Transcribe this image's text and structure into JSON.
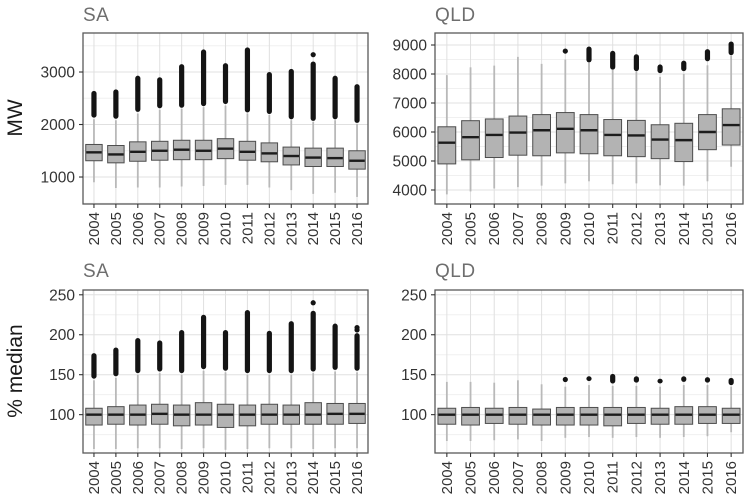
{
  "figure": {
    "description": "Grid of four box-and-whisker plots comparing SA and QLD electricity demand by year",
    "row_units": [
      "MW",
      "% median"
    ],
    "regions": [
      "SA",
      "QLD"
    ]
  },
  "style": {
    "background": "#ffffff",
    "panel_border": "#595959",
    "grid_major": "#e0e0e0",
    "grid_minor": "#f0f0f0",
    "box_fill": "#b3b3b3",
    "box_stroke": "#4d4d4d",
    "median_color": "#1c1c1c",
    "whisker_color": "#b9b9b9",
    "outlier_color": "#141414",
    "tick_color": "#333333",
    "tick_label_color": "#333333",
    "title_color": "#6e6e6e"
  },
  "chart_data": [
    {
      "type": "boxplot",
      "panel": "top-left",
      "title": "SA",
      "ylabel": "MW",
      "x_categories": [
        "2004",
        "2005",
        "2006",
        "2007",
        "2008",
        "2009",
        "2010",
        "2011",
        "2012",
        "2013",
        "2014",
        "2015",
        "2016"
      ],
      "yticks": [
        1000,
        2000,
        3000
      ],
      "minor_step": 500,
      "ylim": [
        486,
        3743
      ],
      "grid": true,
      "boxes": [
        {
          "year": "2004",
          "low": 900,
          "q1": 1310,
          "median": 1470,
          "q3": 1620,
          "high": 2100,
          "outlier_band": [
            2130,
            2640
          ],
          "outlier_dots": []
        },
        {
          "year": "2005",
          "low": 790,
          "q1": 1270,
          "median": 1430,
          "q3": 1600,
          "high": 2080,
          "outlier_band": [
            2110,
            2670
          ],
          "outlier_dots": []
        },
        {
          "year": "2006",
          "low": 800,
          "q1": 1300,
          "median": 1480,
          "q3": 1670,
          "high": 2210,
          "outlier_band": [
            2240,
            2930
          ],
          "outlier_dots": []
        },
        {
          "year": "2007",
          "low": 800,
          "q1": 1320,
          "median": 1500,
          "q3": 1680,
          "high": 2280,
          "outlier_band": [
            2310,
            2900
          ],
          "outlier_dots": []
        },
        {
          "year": "2008",
          "low": 820,
          "q1": 1330,
          "median": 1520,
          "q3": 1700,
          "high": 2300,
          "outlier_band": [
            2320,
            3150
          ],
          "outlier_dots": []
        },
        {
          "year": "2009",
          "low": 830,
          "q1": 1330,
          "median": 1500,
          "q3": 1700,
          "high": 2330,
          "outlier_band": [
            2350,
            3430
          ],
          "outlier_dots": []
        },
        {
          "year": "2010",
          "low": 850,
          "q1": 1350,
          "median": 1540,
          "q3": 1730,
          "high": 2360,
          "outlier_band": [
            2390,
            3170
          ],
          "outlier_dots": []
        },
        {
          "year": "2011",
          "low": 850,
          "q1": 1320,
          "median": 1480,
          "q3": 1680,
          "high": 2210,
          "outlier_band": [
            2230,
            3470
          ],
          "outlier_dots": []
        },
        {
          "year": "2012",
          "low": 800,
          "q1": 1290,
          "median": 1450,
          "q3": 1650,
          "high": 2180,
          "outlier_band": [
            2200,
            3000
          ],
          "outlier_dots": []
        },
        {
          "year": "2013",
          "low": 750,
          "q1": 1230,
          "median": 1400,
          "q3": 1570,
          "high": 2080,
          "outlier_band": [
            2100,
            3060
          ],
          "outlier_dots": []
        },
        {
          "year": "2014",
          "low": 680,
          "q1": 1200,
          "median": 1370,
          "q3": 1550,
          "high": 2050,
          "outlier_band": [
            2070,
            3200
          ],
          "outlier_dots": [
            3330
          ]
        },
        {
          "year": "2015",
          "low": 700,
          "q1": 1200,
          "median": 1360,
          "q3": 1550,
          "high": 2080,
          "outlier_band": [
            2100,
            2930
          ],
          "outlier_dots": []
        },
        {
          "year": "2016",
          "low": 620,
          "q1": 1150,
          "median": 1310,
          "q3": 1500,
          "high": 2010,
          "outlier_band": [
            2030,
            2770
          ],
          "outlier_dots": []
        }
      ]
    },
    {
      "type": "boxplot",
      "panel": "top-right",
      "title": "QLD",
      "ylabel": "MW",
      "x_categories": [
        "2004",
        "2005",
        "2006",
        "2007",
        "2008",
        "2009",
        "2010",
        "2011",
        "2012",
        "2013",
        "2014",
        "2015",
        "2016"
      ],
      "yticks": [
        4000,
        5000,
        6000,
        7000,
        8000,
        9000
      ],
      "minor_step": 500,
      "ylim": [
        3517,
        9414
      ],
      "grid": true,
      "boxes": [
        {
          "year": "2004",
          "low": 3850,
          "q1": 4900,
          "median": 5630,
          "q3": 6180,
          "high": 7960,
          "outlier_band": null,
          "outlier_dots": []
        },
        {
          "year": "2005",
          "low": 3950,
          "q1": 5040,
          "median": 5820,
          "q3": 6390,
          "high": 8230,
          "outlier_band": null,
          "outlier_dots": []
        },
        {
          "year": "2006",
          "low": 4050,
          "q1": 5120,
          "median": 5900,
          "q3": 6450,
          "high": 8290,
          "outlier_band": null,
          "outlier_dots": []
        },
        {
          "year": "2007",
          "low": 4100,
          "q1": 5200,
          "median": 5980,
          "q3": 6550,
          "high": 8590,
          "outlier_band": null,
          "outlier_dots": []
        },
        {
          "year": "2008",
          "low": 4150,
          "q1": 5180,
          "median": 6060,
          "q3": 6600,
          "high": 8350,
          "outlier_band": null,
          "outlier_dots": []
        },
        {
          "year": "2009",
          "low": 4230,
          "q1": 5280,
          "median": 6110,
          "q3": 6670,
          "high": 8500,
          "outlier_band": null,
          "outlier_dots": [
            8790
          ]
        },
        {
          "year": "2010",
          "low": 4300,
          "q1": 5250,
          "median": 6060,
          "q3": 6600,
          "high": 8390,
          "outlier_band": [
            8400,
            8950
          ],
          "outlier_dots": []
        },
        {
          "year": "2011",
          "low": 4200,
          "q1": 5180,
          "median": 5900,
          "q3": 6430,
          "high": 8140,
          "outlier_band": [
            8150,
            8800
          ],
          "outlier_dots": []
        },
        {
          "year": "2012",
          "low": 4230,
          "q1": 5150,
          "median": 5880,
          "q3": 6400,
          "high": 8090,
          "outlier_band": [
            8100,
            8680
          ],
          "outlier_dots": []
        },
        {
          "year": "2013",
          "low": 4160,
          "q1": 5080,
          "median": 5740,
          "q3": 6250,
          "high": 7900,
          "outlier_band": [
            8030,
            8330
          ],
          "outlier_dots": []
        },
        {
          "year": "2014",
          "low": 4150,
          "q1": 4980,
          "median": 5720,
          "q3": 6300,
          "high": 8000,
          "outlier_band": [
            8100,
            8460
          ],
          "outlier_dots": []
        },
        {
          "year": "2015",
          "low": 4300,
          "q1": 5390,
          "median": 6000,
          "q3": 6600,
          "high": 8300,
          "outlier_band": [
            8440,
            8860
          ],
          "outlier_dots": []
        },
        {
          "year": "2016",
          "low": 4800,
          "q1": 5550,
          "median": 6240,
          "q3": 6800,
          "high": 8640,
          "outlier_band": [
            8650,
            9120
          ],
          "outlier_dots": []
        }
      ]
    },
    {
      "type": "boxplot",
      "panel": "bottom-left",
      "title": "SA",
      "ylabel": "% median",
      "x_categories": [
        "2004",
        "2005",
        "2006",
        "2007",
        "2008",
        "2009",
        "2010",
        "2011",
        "2012",
        "2013",
        "2014",
        "2015",
        "2016"
      ],
      "yticks": [
        100,
        150,
        200,
        250
      ],
      "minor_step": 25,
      "ylim": [
        52,
        256
      ],
      "grid": true,
      "boxes": [
        {
          "year": "2004",
          "low": 57,
          "q1": 87,
          "median": 100,
          "q3": 108,
          "high": 143,
          "outlier_band": [
            145,
            177
          ],
          "outlier_dots": []
        },
        {
          "year": "2005",
          "low": 57,
          "q1": 88,
          "median": 100,
          "q3": 110,
          "high": 146,
          "outlier_band": [
            148,
            184
          ],
          "outlier_dots": []
        },
        {
          "year": "2006",
          "low": 58,
          "q1": 87,
          "median": 100,
          "q3": 112,
          "high": 150,
          "outlier_band": [
            152,
            196
          ],
          "outlier_dots": []
        },
        {
          "year": "2007",
          "low": 58,
          "q1": 88,
          "median": 101,
          "q3": 113,
          "high": 152,
          "outlier_band": [
            154,
            193
          ],
          "outlier_dots": []
        },
        {
          "year": "2008",
          "low": 57,
          "q1": 86,
          "median": 100,
          "q3": 112,
          "high": 150,
          "outlier_band": [
            152,
            206
          ],
          "outlier_dots": []
        },
        {
          "year": "2009",
          "low": 58,
          "q1": 87,
          "median": 100,
          "q3": 115,
          "high": 155,
          "outlier_band": [
            157,
            225
          ],
          "outlier_dots": []
        },
        {
          "year": "2010",
          "low": 56,
          "q1": 84,
          "median": 100,
          "q3": 113,
          "high": 153,
          "outlier_band": [
            155,
            206
          ],
          "outlier_dots": []
        },
        {
          "year": "2011",
          "low": 57,
          "q1": 86,
          "median": 100,
          "q3": 112,
          "high": 150,
          "outlier_band": [
            152,
            231
          ],
          "outlier_dots": []
        },
        {
          "year": "2012",
          "low": 58,
          "q1": 88,
          "median": 100,
          "q3": 113,
          "high": 150,
          "outlier_band": [
            152,
            205
          ],
          "outlier_dots": []
        },
        {
          "year": "2013",
          "low": 58,
          "q1": 88,
          "median": 100,
          "q3": 112,
          "high": 150,
          "outlier_band": [
            152,
            217
          ],
          "outlier_dots": []
        },
        {
          "year": "2014",
          "low": 57,
          "q1": 88,
          "median": 100,
          "q3": 115,
          "high": 152,
          "outlier_band": [
            154,
            230
          ],
          "outlier_dots": [
            240
          ]
        },
        {
          "year": "2015",
          "low": 58,
          "q1": 88,
          "median": 101,
          "q3": 114,
          "high": 154,
          "outlier_band": [
            156,
            214
          ],
          "outlier_dots": []
        },
        {
          "year": "2016",
          "low": 58,
          "q1": 89,
          "median": 101,
          "q3": 114,
          "high": 153,
          "outlier_band": [
            155,
            202
          ],
          "outlier_dots": [
            206,
            209
          ]
        }
      ]
    },
    {
      "type": "boxplot",
      "panel": "bottom-right",
      "title": "QLD",
      "ylabel": "% median",
      "x_categories": [
        "2004",
        "2005",
        "2006",
        "2007",
        "2008",
        "2009",
        "2010",
        "2011",
        "2012",
        "2013",
        "2014",
        "2015",
        "2016"
      ],
      "yticks": [
        100,
        150,
        200,
        250
      ],
      "minor_step": 25,
      "ylim": [
        52,
        256
      ],
      "grid": true,
      "boxes": [
        {
          "year": "2004",
          "low": 67,
          "q1": 88,
          "median": 100,
          "q3": 108,
          "high": 141,
          "outlier_band": null,
          "outlier_dots": []
        },
        {
          "year": "2005",
          "low": 67,
          "q1": 87,
          "median": 100,
          "q3": 109,
          "high": 141,
          "outlier_band": null,
          "outlier_dots": []
        },
        {
          "year": "2006",
          "low": 68,
          "q1": 89,
          "median": 100,
          "q3": 108,
          "high": 140,
          "outlier_band": null,
          "outlier_dots": []
        },
        {
          "year": "2007",
          "low": 69,
          "q1": 88,
          "median": 100,
          "q3": 109,
          "high": 143,
          "outlier_band": null,
          "outlier_dots": []
        },
        {
          "year": "2008",
          "low": 67,
          "q1": 87,
          "median": 100,
          "q3": 107,
          "high": 138,
          "outlier_band": null,
          "outlier_dots": []
        },
        {
          "year": "2009",
          "low": 71,
          "q1": 87,
          "median": 100,
          "q3": 109,
          "high": 135,
          "outlier_band": null,
          "outlier_dots": [
            144
          ]
        },
        {
          "year": "2010",
          "low": 72,
          "q1": 87,
          "median": 100,
          "q3": 109,
          "high": 137,
          "outlier_band": [
            142,
            148
          ],
          "outlier_dots": []
        },
        {
          "year": "2011",
          "low": 71,
          "q1": 86,
          "median": 100,
          "q3": 109,
          "high": 136,
          "outlier_band": [
            139,
            151
          ],
          "outlier_dots": []
        },
        {
          "year": "2012",
          "low": 72,
          "q1": 89,
          "median": 100,
          "q3": 109,
          "high": 136,
          "outlier_band": [
            140,
            148
          ],
          "outlier_dots": []
        },
        {
          "year": "2013",
          "low": 71,
          "q1": 88,
          "median": 100,
          "q3": 108,
          "high": 135,
          "outlier_band": [
            139,
            145
          ],
          "outlier_dots": []
        },
        {
          "year": "2014",
          "low": 72,
          "q1": 88,
          "median": 100,
          "q3": 110,
          "high": 137,
          "outlier_band": [
            141,
            148
          ],
          "outlier_dots": []
        },
        {
          "year": "2015",
          "low": 73,
          "q1": 89,
          "median": 100,
          "q3": 110,
          "high": 137,
          "outlier_band": [
            140,
            147
          ],
          "outlier_dots": []
        },
        {
          "year": "2016",
          "low": 78,
          "q1": 89,
          "median": 100,
          "q3": 108,
          "high": 135,
          "outlier_band": [
            137,
            146
          ],
          "outlier_dots": []
        }
      ]
    }
  ]
}
